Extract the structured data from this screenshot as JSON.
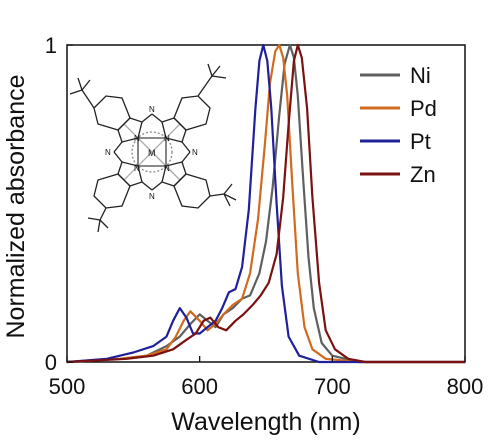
{
  "chart_data": {
    "type": "line",
    "xlabel": "Wavelength (nm)",
    "ylabel": "Normalized absorbance",
    "xlim": [
      500,
      800
    ],
    "ylim": [
      0,
      1
    ],
    "x_ticks": [
      500,
      600,
      700,
      800
    ],
    "y_ticks": [
      0,
      1
    ],
    "grid": false,
    "legend_position": "top-right",
    "inset": "metal phthalocyanine structure with four tert-butyl groups",
    "inset_atom_labels": {
      "nitrogen": "N",
      "metal": "M"
    },
    "series": [
      {
        "name": "Ni",
        "color": "#5f5f5f",
        "x": [
          500,
          540,
          560,
          575,
          585,
          593,
          600,
          606,
          612,
          618,
          625,
          632,
          638,
          645,
          650,
          655,
          660,
          664,
          668,
          671,
          674,
          678,
          682,
          686,
          692,
          700,
          720,
          800
        ],
        "y": [
          0.0,
          0.01,
          0.02,
          0.05,
          0.08,
          0.12,
          0.15,
          0.13,
          0.11,
          0.15,
          0.17,
          0.2,
          0.21,
          0.28,
          0.38,
          0.55,
          0.78,
          0.94,
          1.0,
          0.96,
          0.84,
          0.58,
          0.33,
          0.17,
          0.06,
          0.02,
          0.0,
          0.0
        ]
      },
      {
        "name": "Pd",
        "color": "#d16b1f",
        "x": [
          500,
          540,
          560,
          575,
          582,
          588,
          593,
          600,
          606,
          612,
          618,
          625,
          632,
          638,
          644,
          649,
          653,
          657,
          660,
          663,
          666,
          670,
          674,
          679,
          685,
          695,
          720,
          800
        ],
        "y": [
          0.0,
          0.01,
          0.02,
          0.04,
          0.08,
          0.13,
          0.16,
          0.13,
          0.1,
          0.12,
          0.15,
          0.18,
          0.2,
          0.28,
          0.45,
          0.68,
          0.88,
          0.98,
          1.0,
          0.96,
          0.84,
          0.55,
          0.28,
          0.11,
          0.04,
          0.01,
          0.0,
          0.0
        ]
      },
      {
        "name": "Pt",
        "color": "#20209a",
        "x": [
          500,
          530,
          550,
          565,
          575,
          580,
          585,
          590,
          595,
          600,
          606,
          612,
          617,
          622,
          627,
          632,
          637,
          642,
          645,
          648,
          651,
          654,
          658,
          662,
          667,
          675,
          690,
          720,
          800
        ],
        "y": [
          0.0,
          0.01,
          0.03,
          0.05,
          0.08,
          0.13,
          0.17,
          0.14,
          0.09,
          0.09,
          0.11,
          0.13,
          0.17,
          0.22,
          0.23,
          0.3,
          0.48,
          0.8,
          0.95,
          1.0,
          0.95,
          0.8,
          0.5,
          0.24,
          0.08,
          0.02,
          0.0,
          0.0,
          0.0
        ]
      },
      {
        "name": "Zn",
        "color": "#7a1212",
        "x": [
          500,
          545,
          565,
          580,
          590,
          597,
          603,
          608,
          614,
          620,
          627,
          633,
          640,
          646,
          652,
          658,
          663,
          667,
          671,
          674,
          677,
          681,
          685,
          690,
          695,
          702,
          712,
          725,
          800
        ],
        "y": [
          0.0,
          0.01,
          0.02,
          0.04,
          0.07,
          0.09,
          0.13,
          0.14,
          0.11,
          0.1,
          0.13,
          0.15,
          0.18,
          0.21,
          0.25,
          0.34,
          0.52,
          0.75,
          0.95,
          1.0,
          0.96,
          0.8,
          0.52,
          0.25,
          0.1,
          0.04,
          0.01,
          0.0,
          0.0
        ]
      }
    ]
  }
}
